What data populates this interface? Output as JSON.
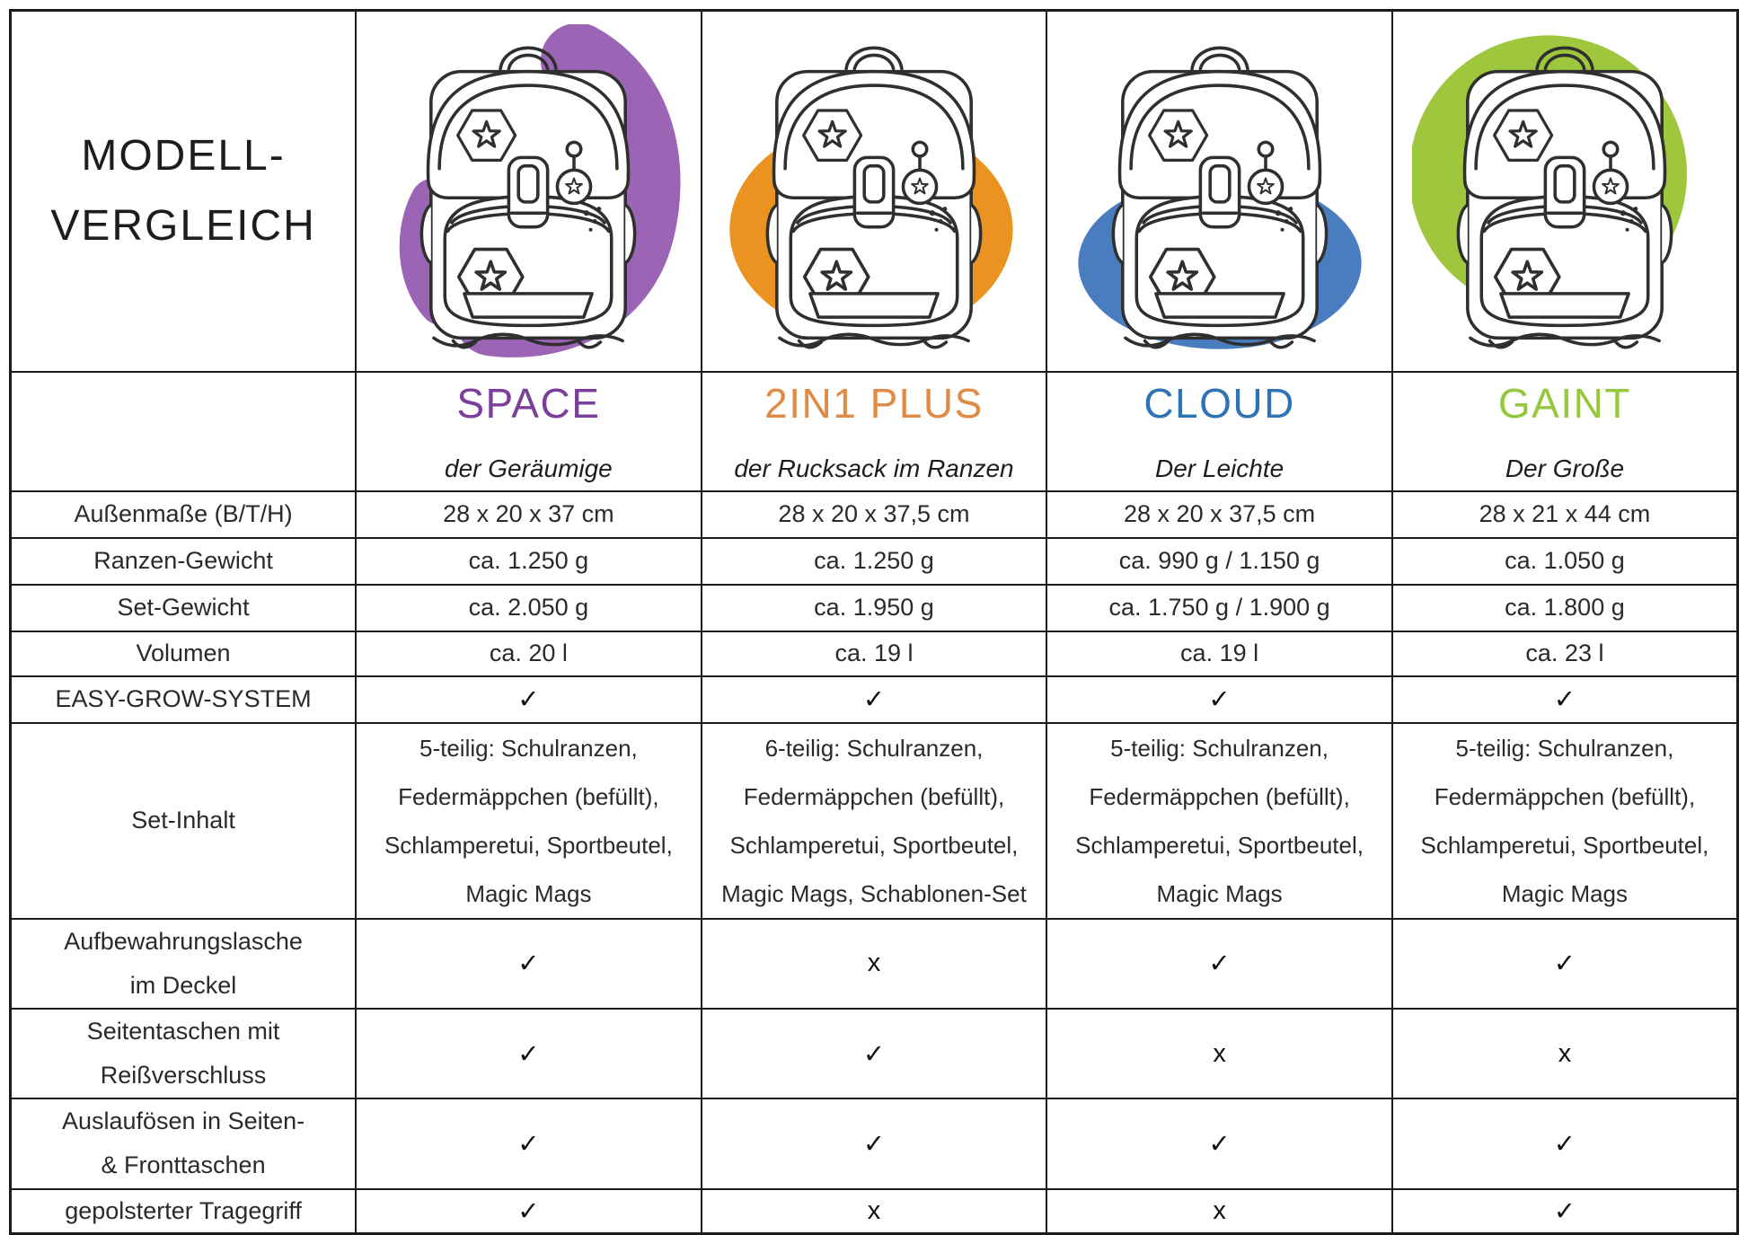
{
  "header": {
    "title": "MODELL-\nVERGLEICH"
  },
  "models": [
    {
      "name": "SPACE",
      "subtitle": "der Geräumige",
      "accent": "#7B3F9B",
      "blob_color": "#9C64B4"
    },
    {
      "name": "2IN1 PLUS",
      "subtitle": "der Rucksack im Ranzen",
      "accent": "#E08B45",
      "blob_color": "#EB9320"
    },
    {
      "name": "CLOUD",
      "subtitle": "Der Leichte",
      "accent": "#2E74B5",
      "blob_color": "#4A7CC0"
    },
    {
      "name": "GAINT",
      "subtitle": "Der Große",
      "accent": "#95C83F",
      "blob_color": "#9FC73D"
    }
  ],
  "rows": [
    {
      "label": "Außenmaße (B/T/H)",
      "values": [
        "28 x 20 x 37 cm",
        "28 x 20 x 37,5 cm",
        "28 x 20 x 37,5 cm",
        "28 x 21 x 44 cm"
      ]
    },
    {
      "label": "Ranzen-Gewicht",
      "values": [
        "ca. 1.250 g",
        "ca. 1.250 g",
        "ca. 990 g / 1.150 g",
        "ca. 1.050 g"
      ]
    },
    {
      "label": "Set-Gewicht",
      "values": [
        "ca. 2.050 g",
        "ca. 1.950 g",
        "ca. 1.750 g / 1.900 g",
        "ca. 1.800 g"
      ]
    },
    {
      "label": "Volumen",
      "values": [
        "ca. 20 l",
        "ca. 19 l",
        "ca. 19 l",
        "ca. 23 l"
      ]
    },
    {
      "label": "EASY-GROW-SYSTEM",
      "values": [
        "✓",
        "✓",
        "✓",
        "✓"
      ]
    },
    {
      "label": "Set-Inhalt",
      "values": [
        "5-teilig: Schulranzen,\nFedermäppchen (befüllt),\nSchlamperetui, Sportbeutel,\nMagic Mags",
        "6-teilig: Schulranzen,\nFedermäppchen (befüllt),\nSchlamperetui, Sportbeutel,\nMagic Mags, Schablonen-Set",
        "5-teilig: Schulranzen,\nFedermäppchen (befüllt),\nSchlamperetui, Sportbeutel,\nMagic Mags",
        "5-teilig: Schulranzen,\nFedermäppchen (befüllt),\nSchlamperetui, Sportbeutel,\nMagic Mags"
      ]
    },
    {
      "label": "Aufbewahrungslasche\nim Deckel",
      "values": [
        "✓",
        "x",
        "✓",
        "✓"
      ]
    },
    {
      "label": "Seitentaschen mit\nReißverschluss",
      "values": [
        "✓",
        "✓",
        "x",
        "x"
      ]
    },
    {
      "label": "Auslaufösen in Seiten-\n& Fronttaschen",
      "values": [
        "✓",
        "✓",
        "✓",
        "✓"
      ]
    },
    {
      "label": "gepolsterter Tragegriff",
      "values": [
        "✓",
        "x",
        "x",
        "✓"
      ]
    }
  ]
}
